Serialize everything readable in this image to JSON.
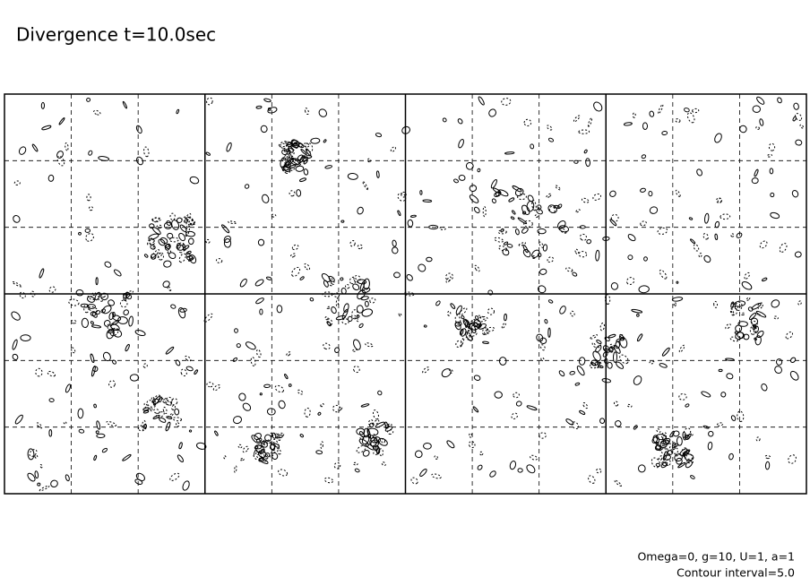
{
  "chart_data": {
    "type": "contour",
    "title": "Divergence t=10.0sec",
    "annotations": [
      "Omega=0, g=10, U=1, a=1",
      "Contour interval=5.0"
    ],
    "grid": true
  }
}
